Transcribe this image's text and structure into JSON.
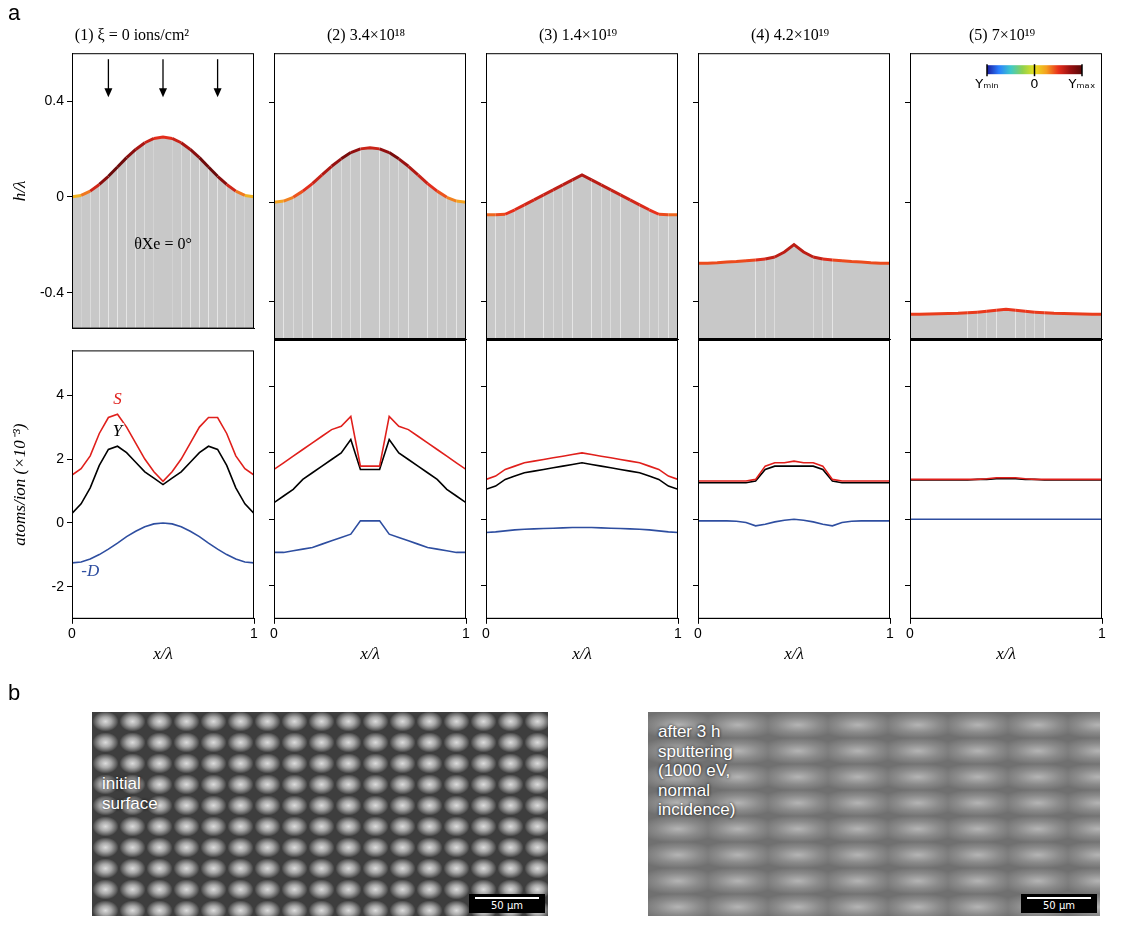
{
  "chart_data": [
    {
      "type": "line",
      "title": "(1) ξ = 0 ions/cm²",
      "ylabel": "h/λ",
      "x": [
        0,
        0.05,
        0.1,
        0.15,
        0.2,
        0.25,
        0.3,
        0.35,
        0.4,
        0.45,
        0.5,
        0.55,
        0.6,
        0.65,
        0.7,
        0.75,
        0.8,
        0.85,
        0.9,
        0.95,
        1
      ],
      "series": [
        {
          "color": "#c8c8c8",
          "values": [
            0,
            0.006,
            0.024,
            0.052,
            0.086,
            0.125,
            0.164,
            0.198,
            0.226,
            0.244,
            0.25,
            0.244,
            0.226,
            0.198,
            0.164,
            0.125,
            0.086,
            0.052,
            0.024,
            0.006,
            0
          ]
        }
      ],
      "xlim": [
        0,
        1
      ],
      "ylim": [
        -0.55,
        0.6
      ],
      "yticks": [
        -0.4,
        0,
        0.4
      ],
      "grid": false,
      "tick_labels": "y",
      "annotations": [
        {
          "text": "θXe = 0°",
          "x": 0.5,
          "y": -0.2
        }
      ]
    },
    {
      "type": "line",
      "title": "(2) 3.4×10¹⁸",
      "x": [
        0,
        0.05,
        0.1,
        0.15,
        0.2,
        0.25,
        0.3,
        0.35,
        0.4,
        0.45,
        0.5,
        0.55,
        0.6,
        0.65,
        0.7,
        0.75,
        0.8,
        0.85,
        0.9,
        0.95,
        1
      ],
      "series": [
        {
          "color": "#c8c8c8",
          "values": [
            0,
            0.005,
            0.02,
            0.045,
            0.075,
            0.11,
            0.145,
            0.175,
            0.2,
            0.215,
            0.22,
            0.215,
            0.2,
            0.175,
            0.145,
            0.11,
            0.075,
            0.045,
            0.02,
            0.005,
            0
          ]
        }
      ],
      "xlim": [
        0,
        1
      ],
      "ylim": [
        -0.55,
        0.6
      ],
      "yticks": [
        -0.4,
        0,
        0.4
      ],
      "grid": false,
      "tick_labels": false
    },
    {
      "type": "line",
      "title": "(3) 1.4×10¹⁹",
      "x": [
        0,
        0.05,
        0.1,
        0.15,
        0.2,
        0.25,
        0.3,
        0.35,
        0.4,
        0.45,
        0.5,
        0.55,
        0.6,
        0.65,
        0.7,
        0.75,
        0.8,
        0.85,
        0.9,
        0.95,
        1
      ],
      "series": [
        {
          "color": "#c8c8c8",
          "values": [
            -0.05,
            -0.05,
            -0.048,
            -0.03,
            -0.01,
            0.01,
            0.03,
            0.05,
            0.07,
            0.09,
            0.11,
            0.09,
            0.07,
            0.05,
            0.03,
            0.01,
            -0.01,
            -0.03,
            -0.048,
            -0.05,
            -0.05
          ]
        }
      ],
      "xlim": [
        0,
        1
      ],
      "ylim": [
        -0.55,
        0.6
      ],
      "yticks": [
        -0.4,
        0,
        0.4
      ],
      "grid": false,
      "tick_labels": false
    },
    {
      "type": "line",
      "title": "(4) 4.2×10¹⁹",
      "x": [
        0,
        0.05,
        0.1,
        0.15,
        0.2,
        0.25,
        0.3,
        0.35,
        0.4,
        0.45,
        0.5,
        0.55,
        0.6,
        0.65,
        0.7,
        0.75,
        0.8,
        0.85,
        0.9,
        0.95,
        1
      ],
      "series": [
        {
          "color": "#c8c8c8",
          "values": [
            -0.245,
            -0.245,
            -0.243,
            -0.24,
            -0.238,
            -0.235,
            -0.232,
            -0.228,
            -0.22,
            -0.2,
            -0.17,
            -0.2,
            -0.22,
            -0.228,
            -0.232,
            -0.235,
            -0.238,
            -0.24,
            -0.243,
            -0.245,
            -0.245
          ]
        }
      ],
      "xlim": [
        0,
        1
      ],
      "ylim": [
        -0.55,
        0.6
      ],
      "yticks": [
        -0.4,
        0,
        0.4
      ],
      "grid": false,
      "tick_labels": false
    },
    {
      "type": "line",
      "title": "(5) 7×10¹⁹",
      "x": [
        0,
        0.05,
        0.1,
        0.15,
        0.2,
        0.25,
        0.3,
        0.35,
        0.4,
        0.45,
        0.5,
        0.55,
        0.6,
        0.65,
        0.7,
        0.75,
        0.8,
        0.85,
        0.9,
        0.95,
        1
      ],
      "series": [
        {
          "color": "#c8c8c8",
          "values": [
            -0.45,
            -0.45,
            -0.449,
            -0.448,
            -0.447,
            -0.446,
            -0.444,
            -0.442,
            -0.438,
            -0.434,
            -0.43,
            -0.434,
            -0.438,
            -0.442,
            -0.444,
            -0.446,
            -0.447,
            -0.448,
            -0.449,
            -0.45,
            -0.45
          ]
        }
      ],
      "xlim": [
        0,
        1
      ],
      "ylim": [
        -0.55,
        0.6
      ],
      "yticks": [
        -0.4,
        0,
        0.4
      ],
      "grid": false,
      "tick_labels": false,
      "colorbar": {
        "range": [
          -2.5,
          2.5
        ],
        "ticks": [
          {
            "value": -2.5,
            "label": "Yₘᵢₙ"
          },
          0,
          {
            "value": 2.5,
            "label": "Yₘₐₓ"
          }
        ],
        "colors": [
          "#1b1b9e",
          "#2a7fff",
          "#3ec9c9",
          "#8fd14f",
          "#e8e020",
          "#f5a020",
          "#e8301c",
          "#9a1010",
          "#5a0808"
        ]
      }
    },
    {
      "type": "line",
      "xlabel": "x/λ",
      "ylabel": "atoms/ion (×10⁻³)",
      "x": [
        0,
        0.05,
        0.1,
        0.15,
        0.2,
        0.25,
        0.3,
        0.35,
        0.4,
        0.45,
        0.5,
        0.55,
        0.6,
        0.65,
        0.7,
        0.75,
        0.8,
        0.85,
        0.9,
        0.95,
        1
      ],
      "series": [
        {
          "name": "S",
          "color": "#e0201c",
          "values": [
            1.5,
            1.7,
            2.1,
            2.8,
            3.3,
            3.4,
            3.0,
            2.5,
            2.0,
            1.6,
            1.3,
            1.6,
            2.0,
            2.5,
            3.0,
            3.3,
            3.3,
            2.8,
            2.1,
            1.7,
            1.5
          ]
        },
        {
          "name": "Y",
          "color": "#000000",
          "values": [
            0.3,
            0.6,
            1.1,
            1.8,
            2.3,
            2.4,
            2.2,
            1.9,
            1.6,
            1.4,
            1.2,
            1.4,
            1.6,
            1.9,
            2.2,
            2.4,
            2.3,
            1.8,
            1.1,
            0.6,
            0.3
          ]
        },
        {
          "name": "-D",
          "color": "#2e4ea0",
          "values": [
            -1.25,
            -1.22,
            -1.13,
            -0.99,
            -0.82,
            -0.63,
            -0.43,
            -0.26,
            -0.12,
            -0.03,
            0,
            -0.03,
            -0.12,
            -0.26,
            -0.43,
            -0.63,
            -0.82,
            -0.99,
            -1.13,
            -1.22,
            -1.25
          ]
        }
      ],
      "xlim": [
        0,
        1
      ],
      "ylim": [
        -3,
        5.4
      ],
      "xticks": [
        0,
        1
      ],
      "yticks": [
        -2,
        0,
        2,
        4
      ],
      "grid": false,
      "tick_labels": true
    },
    {
      "type": "line",
      "xlabel": "x/λ",
      "x": [
        0,
        0.05,
        0.1,
        0.15,
        0.2,
        0.25,
        0.3,
        0.35,
        0.4,
        0.45,
        0.5,
        0.55,
        0.6,
        0.65,
        0.7,
        0.75,
        0.8,
        0.85,
        0.9,
        0.95,
        1
      ],
      "series": [
        {
          "color": "#e0201c",
          "values": [
            1.5,
            1.7,
            1.9,
            2.1,
            2.3,
            2.5,
            2.7,
            2.8,
            3.1,
            1.6,
            1.6,
            1.6,
            3.1,
            2.8,
            2.7,
            2.5,
            2.3,
            2.1,
            1.9,
            1.7,
            1.5
          ]
        },
        {
          "color": "#000000",
          "values": [
            0.5,
            0.7,
            0.9,
            1.2,
            1.4,
            1.6,
            1.8,
            2.0,
            2.4,
            1.5,
            1.5,
            1.5,
            2.4,
            2.0,
            1.8,
            1.6,
            1.4,
            1.2,
            0.9,
            0.7,
            0.5
          ]
        },
        {
          "color": "#2e4ea0",
          "values": [
            -1.0,
            -1.0,
            -0.95,
            -0.9,
            -0.85,
            -0.75,
            -0.65,
            -0.55,
            -0.45,
            -0.05,
            -0.05,
            -0.05,
            -0.45,
            -0.55,
            -0.65,
            -0.75,
            -0.85,
            -0.9,
            -0.95,
            -1.0,
            -1.0
          ]
        }
      ],
      "xlim": [
        0,
        1
      ],
      "ylim": [
        -3,
        5.4
      ],
      "xticks": [
        0,
        1
      ],
      "yticks": [
        -2,
        0,
        2,
        4
      ],
      "grid": false,
      "tick_labels": "x"
    },
    {
      "type": "line",
      "xlabel": "x/λ",
      "x": [
        0,
        0.05,
        0.1,
        0.15,
        0.2,
        0.25,
        0.3,
        0.35,
        0.4,
        0.45,
        0.5,
        0.55,
        0.6,
        0.65,
        0.7,
        0.75,
        0.8,
        0.85,
        0.9,
        0.95,
        1
      ],
      "series": [
        {
          "color": "#e0201c",
          "values": [
            1.2,
            1.3,
            1.5,
            1.6,
            1.7,
            1.75,
            1.8,
            1.85,
            1.9,
            1.95,
            2.0,
            1.95,
            1.9,
            1.85,
            1.8,
            1.75,
            1.7,
            1.6,
            1.5,
            1.3,
            1.2
          ]
        },
        {
          "color": "#000000",
          "values": [
            0.9,
            1.0,
            1.2,
            1.3,
            1.4,
            1.45,
            1.5,
            1.55,
            1.6,
            1.65,
            1.7,
            1.65,
            1.6,
            1.55,
            1.5,
            1.45,
            1.4,
            1.3,
            1.2,
            1.0,
            0.9
          ]
        },
        {
          "color": "#2e4ea0",
          "values": [
            -0.4,
            -0.38,
            -0.35,
            -0.32,
            -0.3,
            -0.29,
            -0.28,
            -0.27,
            -0.26,
            -0.25,
            -0.25,
            -0.25,
            -0.26,
            -0.27,
            -0.28,
            -0.29,
            -0.3,
            -0.32,
            -0.35,
            -0.38,
            -0.4
          ]
        }
      ],
      "xlim": [
        0,
        1
      ],
      "ylim": [
        -3,
        5.4
      ],
      "xticks": [
        0,
        1
      ],
      "yticks": [
        -2,
        0,
        2,
        4
      ],
      "grid": false,
      "tick_labels": "x"
    },
    {
      "type": "line",
      "xlabel": "x/λ",
      "x": [
        0,
        0.05,
        0.1,
        0.15,
        0.2,
        0.25,
        0.3,
        0.35,
        0.4,
        0.45,
        0.5,
        0.55,
        0.6,
        0.65,
        0.7,
        0.75,
        0.8,
        0.85,
        0.9,
        0.95,
        1
      ],
      "series": [
        {
          "color": "#e0201c",
          "values": [
            1.15,
            1.15,
            1.15,
            1.15,
            1.15,
            1.15,
            1.2,
            1.6,
            1.7,
            1.7,
            1.75,
            1.7,
            1.7,
            1.6,
            1.2,
            1.15,
            1.15,
            1.15,
            1.15,
            1.15,
            1.15
          ]
        },
        {
          "color": "#000000",
          "values": [
            1.1,
            1.1,
            1.1,
            1.1,
            1.1,
            1.1,
            1.15,
            1.5,
            1.6,
            1.6,
            1.6,
            1.6,
            1.6,
            1.5,
            1.15,
            1.1,
            1.1,
            1.1,
            1.1,
            1.1,
            1.1
          ]
        },
        {
          "color": "#2e4ea0",
          "values": [
            -0.05,
            -0.05,
            -0.05,
            -0.05,
            -0.06,
            -0.1,
            -0.2,
            -0.15,
            -0.08,
            -0.03,
            0,
            -0.03,
            -0.08,
            -0.15,
            -0.2,
            -0.1,
            -0.06,
            -0.05,
            -0.05,
            -0.05,
            -0.05
          ]
        }
      ],
      "xlim": [
        0,
        1
      ],
      "ylim": [
        -3,
        5.4
      ],
      "xticks": [
        0,
        1
      ],
      "yticks": [
        -2,
        0,
        2,
        4
      ],
      "grid": false,
      "tick_labels": "x"
    },
    {
      "type": "line",
      "xlabel": "x/λ",
      "x": [
        0,
        0.05,
        0.1,
        0.15,
        0.2,
        0.25,
        0.3,
        0.35,
        0.4,
        0.45,
        0.5,
        0.55,
        0.6,
        0.65,
        0.7,
        0.75,
        0.8,
        0.85,
        0.9,
        0.95,
        1
      ],
      "series": [
        {
          "color": "#e0201c",
          "values": [
            1.2,
            1.2,
            1.2,
            1.2,
            1.2,
            1.2,
            1.2,
            1.2,
            1.22,
            1.25,
            1.25,
            1.25,
            1.22,
            1.2,
            1.2,
            1.2,
            1.2,
            1.2,
            1.2,
            1.2,
            1.2
          ]
        },
        {
          "color": "#000000",
          "values": [
            1.18,
            1.18,
            1.18,
            1.18,
            1.18,
            1.18,
            1.18,
            1.2,
            1.2,
            1.22,
            1.22,
            1.22,
            1.2,
            1.2,
            1.18,
            1.18,
            1.18,
            1.18,
            1.18,
            1.18,
            1.18
          ]
        },
        {
          "color": "#2e4ea0",
          "values": [
            0,
            0,
            0,
            0,
            0,
            0,
            0,
            0,
            0,
            0,
            0,
            0,
            0,
            0,
            0,
            0,
            0,
            0,
            0,
            0,
            0
          ]
        }
      ],
      "xlim": [
        0,
        1
      ],
      "ylim": [
        -3,
        5.4
      ],
      "xticks": [
        0,
        1
      ],
      "yticks": [
        -2,
        0,
        2,
        4
      ],
      "grid": false,
      "tick_labels": "x"
    }
  ],
  "panel_labels": [
    "a",
    "b"
  ],
  "images": [
    {
      "text_lines": [
        "initial",
        "surface"
      ],
      "scale_bar": "50 µm"
    },
    {
      "text_lines": [
        "after 3 h",
        "sputtering",
        "(1000 eV,",
        "normal",
        "incidence)"
      ],
      "scale_bar": "50 µm"
    }
  ]
}
